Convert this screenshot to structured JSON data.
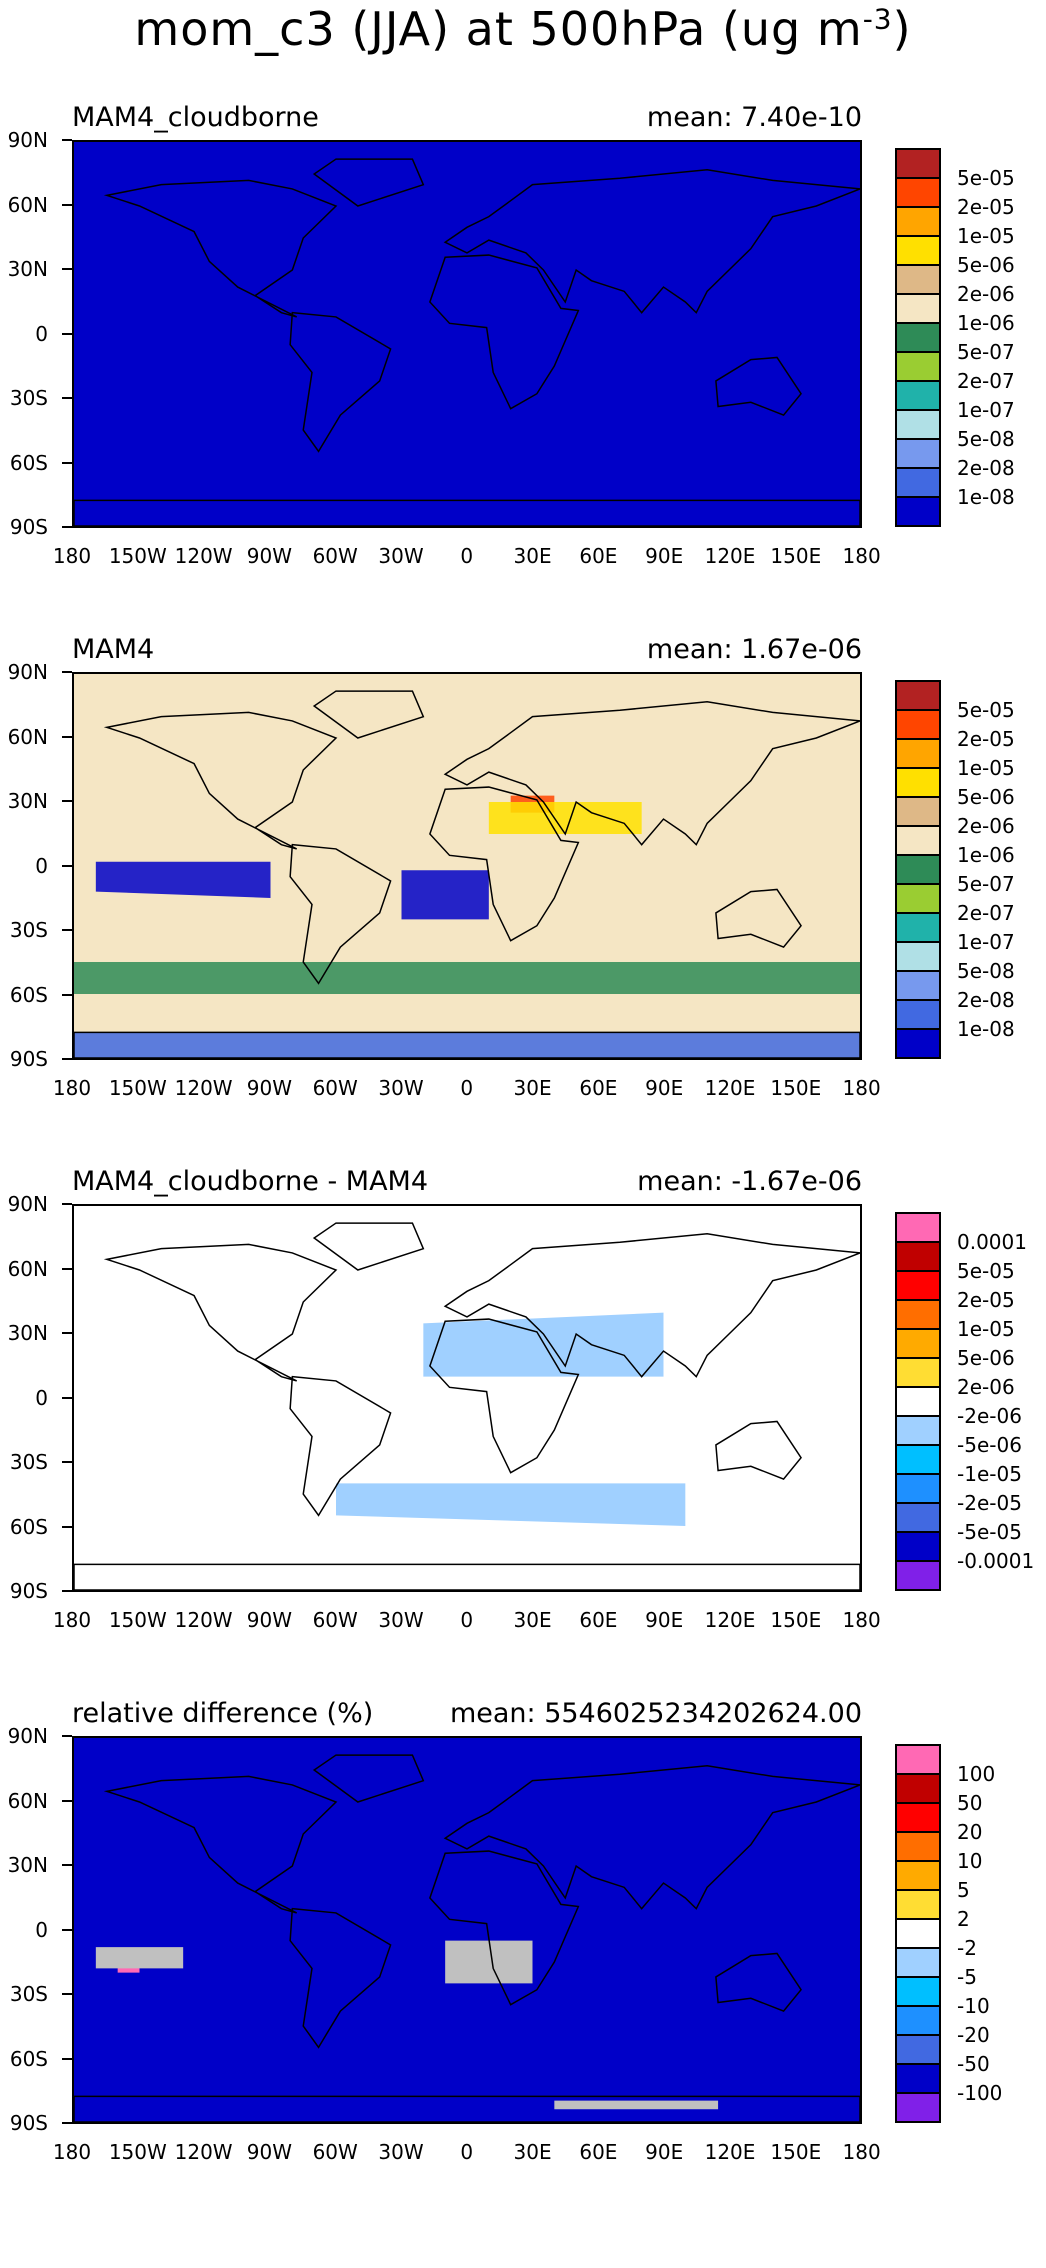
{
  "title": {
    "main": "mom_c3 (JJA) at 500hPa (ug m",
    "exponent": "-3",
    "close": ")"
  },
  "lat_labels": [
    "90N",
    "60N",
    "30N",
    "0",
    "30S",
    "60S",
    "90S"
  ],
  "lon_labels": [
    "180",
    "150W",
    "120W",
    "90W",
    "60W",
    "30W",
    "0",
    "30E",
    "60E",
    "90E",
    "120E",
    "150E",
    "180"
  ],
  "panels": [
    {
      "title": "MAM4_cloudborne",
      "mean": "mean: 7.40e-10",
      "background": "#0000c8",
      "colorbar": {
        "colors": [
          "#b22222",
          "#ff4500",
          "#ffa500",
          "#ffe000",
          "#deb887",
          "#f5e6c4",
          "#2e8b57",
          "#9acd32",
          "#20b2aa",
          "#b0e0e6",
          "#7799ee",
          "#4169e1",
          "#0000c8"
        ],
        "labels": [
          "5e-05",
          "2e-05",
          "1e-05",
          "5e-06",
          "2e-06",
          "1e-06",
          "5e-07",
          "2e-07",
          "1e-07",
          "5e-08",
          "2e-08",
          "1e-08"
        ]
      }
    },
    {
      "title": "MAM4",
      "mean": "mean: 1.67e-06",
      "background": "#f5e6c4",
      "colorbar": {
        "colors": [
          "#b22222",
          "#ff4500",
          "#ffa500",
          "#ffe000",
          "#deb887",
          "#f5e6c4",
          "#2e8b57",
          "#9acd32",
          "#20b2aa",
          "#b0e0e6",
          "#7799ee",
          "#4169e1",
          "#0000c8"
        ],
        "labels": [
          "5e-05",
          "2e-05",
          "1e-05",
          "5e-06",
          "2e-06",
          "1e-06",
          "5e-07",
          "2e-07",
          "1e-07",
          "5e-08",
          "2e-08",
          "1e-08"
        ]
      }
    },
    {
      "title": "MAM4_cloudborne - MAM4",
      "mean": "mean: -1.67e-06",
      "background": "#ffffff",
      "colorbar": {
        "colors": [
          "#ff69b4",
          "#c00000",
          "#ff0000",
          "#ff6e00",
          "#ffaa00",
          "#ffdd33",
          "#ffffff",
          "#a0d0ff",
          "#00bfff",
          "#1e90ff",
          "#4169e1",
          "#0000c8",
          "#8020e8"
        ],
        "labels": [
          "0.0001",
          "5e-05",
          "2e-05",
          "1e-05",
          "5e-06",
          "2e-06",
          "-2e-06",
          "-5e-06",
          "-1e-05",
          "-2e-05",
          "-5e-05",
          "-0.0001"
        ]
      }
    },
    {
      "title": "relative difference (%)",
      "mean": "mean: 5546025234202624.00",
      "background": "#0000c8",
      "colorbar": {
        "colors": [
          "#ff69b4",
          "#c00000",
          "#ff0000",
          "#ff6e00",
          "#ffaa00",
          "#ffdd33",
          "#ffffff",
          "#a0d0ff",
          "#00bfff",
          "#1e90ff",
          "#4169e1",
          "#0000c8",
          "#8020e8"
        ],
        "labels": [
          "100",
          "50",
          "20",
          "10",
          "5",
          "2",
          "-2",
          "-5",
          "-10",
          "-20",
          "-50",
          "-100"
        ]
      }
    }
  ]
}
